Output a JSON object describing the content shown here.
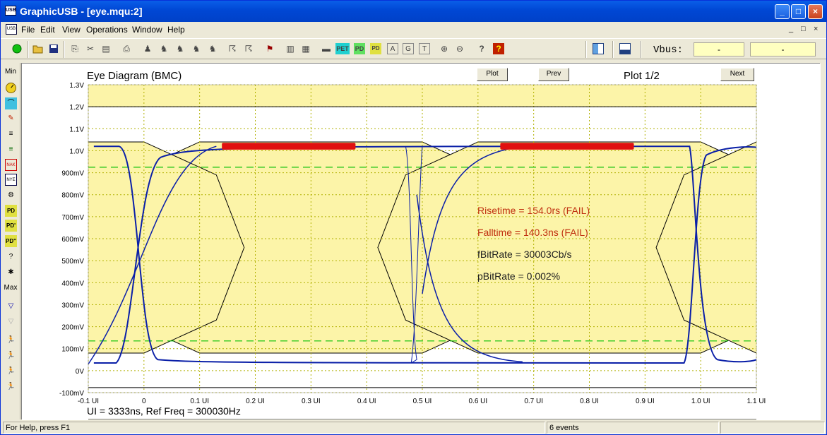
{
  "window": {
    "title": "GraphicUSB - [eye.mqu:2]",
    "app_icon": "USB"
  },
  "title_buttons": {
    "minimize": "_",
    "maximize": "□",
    "close": "×"
  },
  "menu": {
    "items": [
      "File",
      "Edit",
      "View",
      "Operations",
      "Window",
      "Help"
    ],
    "mdi": [
      "_",
      "□",
      "×"
    ]
  },
  "toolbar": {
    "vbus_label": "Vbus:",
    "vbus_value1": "-",
    "vbus_value2": "-",
    "icons": [
      "run-icon",
      "open-icon",
      "save-icon",
      "copy-icon",
      "cut-icon",
      "paste-icon",
      "print-icon",
      "find-icon",
      "find-prev-icon",
      "find-next-icon",
      "find-all-icon",
      "find-more-icon",
      "jump-icon",
      "jump-back-icon",
      "filter-icon",
      "export-icon",
      "report-icon",
      "device-icon",
      "pet-icon",
      "pd-icon",
      "pd-sop-icon",
      "a-icon",
      "g-icon",
      "t-icon",
      "zoom-in-icon",
      "zoom-out-icon",
      "help-icon",
      "whats-this-icon",
      "split-view-icon",
      "bottom-pane-icon"
    ]
  },
  "sidebar": {
    "labels": {
      "min": "Min",
      "max": "Max"
    }
  },
  "plot": {
    "title": "Eye Diagram (BMC)",
    "plot_button": "Plot",
    "prev_button": "Prev",
    "next_button": "Next",
    "page": "Plot 1/2",
    "y_ticks": [
      "1.3V",
      "1.2V",
      "1.1V",
      "1.0V",
      "900mV",
      "800mV",
      "700mV",
      "600mV",
      "500mV",
      "400mV",
      "300mV",
      "200mV",
      "100mV",
      "0V",
      "-100mV"
    ],
    "x_ticks": [
      "-0.1 UI",
      "0",
      "0.1 UI",
      "0.2 UI",
      "0.3 UI",
      "0.4 UI",
      "0.5 UI",
      "0.6 UI",
      "0.7 UI",
      "0.8 UI",
      "0.9 UI",
      "1.0 UI",
      "1.1 UI"
    ],
    "footer": "UI = 3333ns, Ref Freq = 300030Hz",
    "stats": [
      {
        "text": "Risetime = 154.0rs (FAIL)",
        "color": "#c03010"
      },
      {
        "text": "Falltime = 140.3ns (FAIL)",
        "color": "#c03010"
      },
      {
        "text": "fBitRate = 30003Cb/s",
        "color": "#202020"
      },
      {
        "text": "pBitRate = 0.002%",
        "color": "#202020"
      }
    ],
    "colors": {
      "mask": "#fcf4a8",
      "trace": "#0a1fa8",
      "violation": "#e01010",
      "threshold": "#00c000",
      "grid": "#b0b000"
    }
  },
  "status": {
    "help": "For Help, press F1",
    "events": "6 events"
  }
}
